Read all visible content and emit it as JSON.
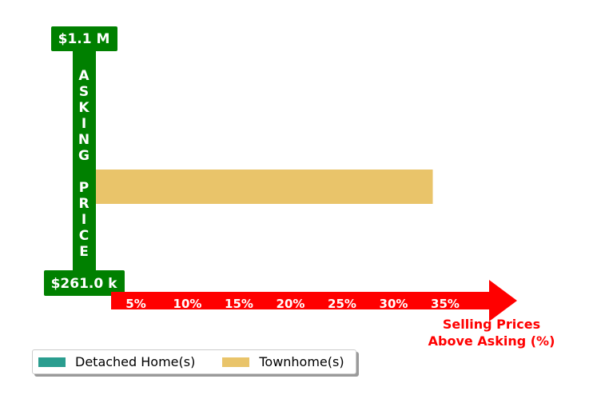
{
  "chart_data": {
    "type": "bar",
    "orientation": "horizontal",
    "title": "",
    "y_axis": {
      "top_label": "$1.1 M",
      "bottom_label": "$261.0 k",
      "title_letters": [
        "A",
        "S",
        "K",
        "I",
        "N",
        "G",
        "",
        "P",
        "R",
        "I",
        "C",
        "E"
      ],
      "color": "#008000"
    },
    "x_axis": {
      "label_line1": "Selling Prices",
      "label_line2": "Above Asking (%)",
      "ticks": [
        "5%",
        "10%",
        "15%",
        "20%",
        "25%",
        "30%",
        "35%"
      ],
      "tick_values": [
        5,
        10,
        15,
        20,
        25,
        30,
        35
      ],
      "color": "#ff0000"
    },
    "series": [
      {
        "name": "Detached Home(s)",
        "color": "#2a9d8f",
        "values": []
      },
      {
        "name": "Townhome(s)",
        "color": "#e9c46a",
        "values": [
          33.8
        ]
      }
    ],
    "legend_position": "bottom-left",
    "grid": false
  }
}
